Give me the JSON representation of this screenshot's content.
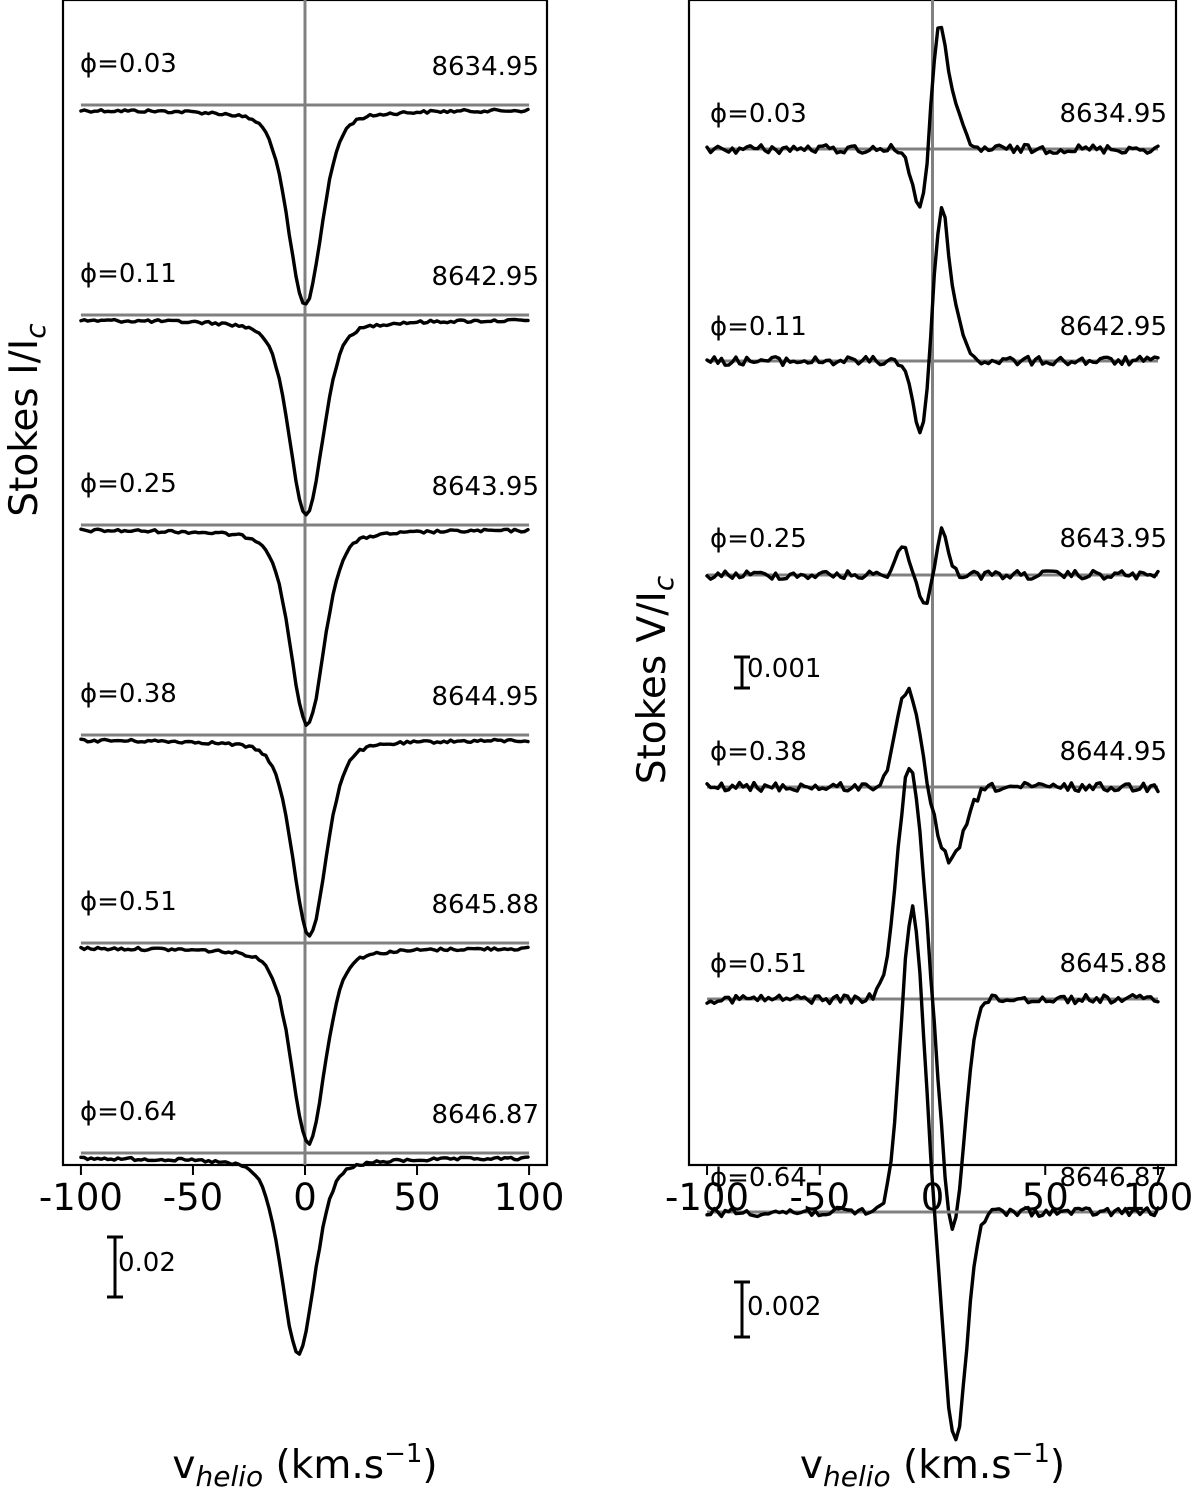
{
  "chart_data": [
    {
      "type": "line",
      "panel": "Stokes I",
      "ylabel": "Stokes I/I_c",
      "xlabel": "v_helio (km.s^-1)",
      "xlim": [
        -108,
        108
      ],
      "xticks": [
        -100,
        -50,
        0,
        50,
        100
      ],
      "scale_bar": {
        "value": 0.02,
        "label": "0.02"
      },
      "series": [
        {
          "phase": "ϕ=0.03",
          "date": "8634.95",
          "center": 0.0,
          "depth": 0.565,
          "width": 7.5
        },
        {
          "phase": "ϕ=0.11",
          "date": "8642.95",
          "center": 0.5,
          "depth": 0.565,
          "width": 7.5
        },
        {
          "phase": "ϕ=0.25",
          "date": "8643.95",
          "center": 1.0,
          "depth": 0.565,
          "width": 7.5
        },
        {
          "phase": "ϕ=0.38",
          "date": "8644.95",
          "center": 2.0,
          "depth": 0.565,
          "width": 7.5
        },
        {
          "phase": "ϕ=0.51",
          "date": "8645.88",
          "center": 1.5,
          "depth": 0.565,
          "width": 7.5
        },
        {
          "phase": "ϕ=0.64",
          "date": "8646.87",
          "center": -3.0,
          "depth": 0.565,
          "width": 7.5
        }
      ]
    },
    {
      "type": "line",
      "panel": "Stokes V",
      "ylabel": "Stokes V/I_c",
      "xlabel": "v_helio (km.s^-1)",
      "xlim": [
        -108,
        108
      ],
      "xticks": [
        -100,
        -50,
        0,
        50,
        100
      ],
      "scale_bars": [
        {
          "value": 0.001,
          "label": "0.001"
        },
        {
          "value": 0.002,
          "label": "0.002"
        }
      ],
      "series": [
        {
          "phase": "ϕ=0.03",
          "date": "8634.95",
          "peaks": [
            [
              -5,
              -0.0012,
              3.5
            ],
            [
              3,
              0.0023,
              3.5
            ],
            [
              11,
              0.0005,
              3
            ]
          ]
        },
        {
          "phase": "ϕ=0.11",
          "date": "8642.95",
          "peaks": [
            [
              -5,
              -0.0013,
              3.5
            ],
            [
              4,
              0.0027,
              3.5
            ],
            [
              12,
              0.0005,
              3
            ]
          ]
        },
        {
          "phase": "ϕ=0.25",
          "date": "8643.95",
          "peaks": [
            [
              -13,
              0.0005,
              3
            ],
            [
              -3,
              -0.0006,
              3
            ],
            [
              4,
              0.0008,
              3
            ]
          ]
        },
        {
          "phase": "ϕ=0.38",
          "date": "8644.95",
          "peaks": [
            [
              -11,
              0.0017,
              5
            ],
            [
              8,
              -0.0013,
              6
            ]
          ]
        },
        {
          "phase": "ϕ=0.51",
          "date": "8645.88",
          "peaks": [
            [
              -10,
              0.0041,
              5.5
            ],
            [
              9,
              -0.004,
              5
            ]
          ]
        },
        {
          "phase": "ϕ=0.64",
          "date": "8646.87",
          "peaks": [
            [
              -9,
              0.0053,
              5
            ],
            [
              10,
              -0.004,
              5
            ]
          ]
        }
      ]
    }
  ]
}
